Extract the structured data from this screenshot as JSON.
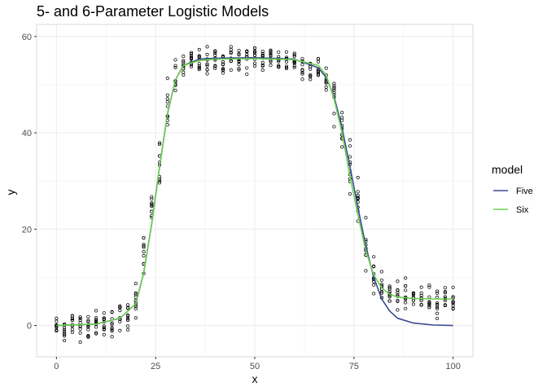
{
  "chart_data": {
    "type": "scatter",
    "title": "5- and 6-Parameter Logistic Models",
    "xlabel": "x",
    "ylabel": "y",
    "xlim": [
      -5,
      105
    ],
    "ylim": [
      -6.5,
      62.5
    ],
    "x_ticks": [
      0,
      25,
      50,
      75,
      100
    ],
    "y_ticks": [
      0,
      20,
      40,
      60
    ],
    "grid": true,
    "legend": {
      "title": "model",
      "placement": "right",
      "entries": [
        {
          "name": "Five",
          "color": "#3b4992"
        },
        {
          "name": "Six",
          "color": "#6ccf4f"
        }
      ]
    },
    "points": {
      "x_start": 0,
      "x_end": 100,
      "x_step": 2,
      "replicates": 10,
      "color": "#000000",
      "approx_y_by_x": [
        [
          0,
          -0.5
        ],
        [
          4,
          0.2
        ],
        [
          10,
          0.2
        ],
        [
          14,
          0.6
        ],
        [
          18,
          2.5
        ],
        [
          20,
          6.0
        ],
        [
          24,
          23.0
        ],
        [
          26,
          33.0
        ],
        [
          28,
          45.0
        ],
        [
          30,
          51.0
        ],
        [
          32,
          54.0
        ],
        [
          40,
          55.0
        ],
        [
          50,
          55.5
        ],
        [
          60,
          55.0
        ],
        [
          66,
          53.0
        ],
        [
          70,
          48.0
        ],
        [
          72,
          42.0
        ],
        [
          74,
          33.0
        ],
        [
          76,
          25.0
        ],
        [
          78,
          16.0
        ],
        [
          80,
          10.0
        ],
        [
          84,
          6.5
        ],
        [
          90,
          5.5
        ],
        [
          100,
          5.5
        ]
      ]
    },
    "series": [
      {
        "name": "Five",
        "color": "#3b4992",
        "x": [
          0,
          10,
          16,
          20,
          22,
          24,
          26,
          28,
          30,
          32,
          36,
          40,
          50,
          60,
          66,
          68,
          70,
          72,
          74,
          76,
          78,
          80,
          82,
          84,
          86,
          90,
          95,
          100
        ],
        "y": [
          0,
          0.3,
          1.5,
          4.5,
          11,
          21,
          33,
          44,
          51,
          54,
          55.3,
          55.5,
          55.6,
          55.3,
          53.5,
          51.5,
          47.5,
          41,
          33,
          24.5,
          16.5,
          10,
          5.5,
          3,
          1.5,
          0.5,
          0.1,
          0
        ]
      },
      {
        "name": "Six",
        "color": "#6ccf4f",
        "x": [
          0,
          10,
          16,
          20,
          22,
          24,
          26,
          28,
          30,
          32,
          36,
          40,
          50,
          60,
          66,
          68,
          70,
          72,
          74,
          76,
          78,
          80,
          82,
          84,
          86,
          90,
          95,
          100
        ],
        "y": [
          0,
          0.3,
          1.5,
          4.5,
          11,
          21,
          33,
          44,
          51,
          54,
          55,
          55.3,
          55.4,
          55.2,
          54,
          52,
          47,
          40,
          31,
          23,
          15.5,
          10.5,
          7.8,
          6.5,
          5.9,
          5.6,
          5.5,
          5.5
        ]
      }
    ]
  }
}
